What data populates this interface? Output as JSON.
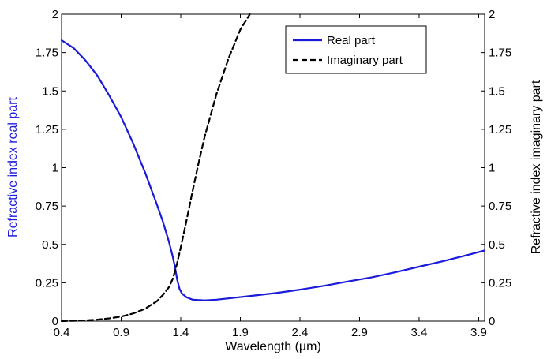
{
  "chart_data": {
    "type": "line",
    "xlabel": "Wavelength (µm)",
    "ylabel_left": "Refractive index real part",
    "ylabel_right": "Refractive index imaginary part",
    "xlim": [
      0.4,
      3.95
    ],
    "ylim_left": [
      0,
      2
    ],
    "ylim_right": [
      0,
      2
    ],
    "x_ticks": [
      "0.4",
      "0.9",
      "1.4",
      "1.9",
      "2.4",
      "2.9",
      "3.4",
      "3.9"
    ],
    "y_ticks_left": [
      "0",
      "0.25",
      "0.5",
      "0.75",
      "1",
      "1.25",
      "1.5",
      "1.75",
      "2"
    ],
    "y_ticks_right": [
      "0",
      "0.25",
      "0.5",
      "0.75",
      "1",
      "1.25",
      "1.5",
      "1.75",
      "2"
    ],
    "grid": false,
    "legend_position": "top-right",
    "colors": {
      "left_axis": "#1a1adb",
      "real": "#1a1adb",
      "imag": "#000000"
    },
    "series": [
      {
        "name": "Real part",
        "axis": "left",
        "style": "solid",
        "x": [
          0.4,
          0.5,
          0.6,
          0.7,
          0.8,
          0.9,
          1.0,
          1.1,
          1.2,
          1.25,
          1.3,
          1.33,
          1.35,
          1.37,
          1.39,
          1.41,
          1.45,
          1.5,
          1.6,
          1.7,
          1.8,
          2.0,
          2.2,
          2.4,
          2.6,
          2.8,
          3.0,
          3.2,
          3.4,
          3.6,
          3.8,
          3.95
        ],
        "values": [
          1.83,
          1.78,
          1.7,
          1.6,
          1.47,
          1.33,
          1.16,
          0.97,
          0.76,
          0.65,
          0.52,
          0.43,
          0.36,
          0.27,
          0.21,
          0.18,
          0.155,
          0.14,
          0.135,
          0.14,
          0.148,
          0.165,
          0.183,
          0.205,
          0.23,
          0.258,
          0.285,
          0.318,
          0.355,
          0.39,
          0.43,
          0.46
        ]
      },
      {
        "name": "Imaginary part",
        "axis": "right",
        "style": "dashed",
        "x": [
          0.4,
          0.5,
          0.6,
          0.7,
          0.8,
          0.9,
          1.0,
          1.1,
          1.2,
          1.25,
          1.3,
          1.33,
          1.35,
          1.37,
          1.4,
          1.45,
          1.5,
          1.55,
          1.6,
          1.7,
          1.8,
          1.9,
          1.98
        ],
        "values": [
          0,
          0.002,
          0.005,
          0.01,
          0.018,
          0.03,
          0.05,
          0.08,
          0.13,
          0.17,
          0.22,
          0.27,
          0.32,
          0.38,
          0.48,
          0.66,
          0.85,
          1.03,
          1.2,
          1.48,
          1.71,
          1.9,
          2.0
        ]
      }
    ]
  }
}
